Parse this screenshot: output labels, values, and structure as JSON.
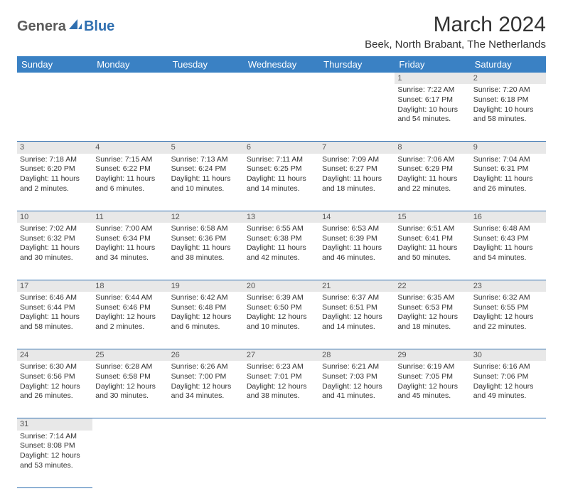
{
  "logo": {
    "part1": "Genera",
    "part2": "Blue"
  },
  "title": "March 2024",
  "location": "Beek, North Brabant, The Netherlands",
  "colors": {
    "header_bg": "#3a81c4",
    "header_text": "#ffffff",
    "daynum_bg": "#e8e8e8",
    "border": "#2f6fb0",
    "text": "#333333",
    "logo_gray": "#5a5a5a",
    "logo_blue": "#2f6fb0"
  },
  "weekdays": [
    "Sunday",
    "Monday",
    "Tuesday",
    "Wednesday",
    "Thursday",
    "Friday",
    "Saturday"
  ],
  "weeks": [
    {
      "nums": [
        "",
        "",
        "",
        "",
        "",
        "1",
        "2"
      ],
      "cells": [
        null,
        null,
        null,
        null,
        null,
        {
          "sr": "Sunrise: 7:22 AM",
          "ss": "Sunset: 6:17 PM",
          "dl1": "Daylight: 10 hours",
          "dl2": "and 54 minutes."
        },
        {
          "sr": "Sunrise: 7:20 AM",
          "ss": "Sunset: 6:18 PM",
          "dl1": "Daylight: 10 hours",
          "dl2": "and 58 minutes."
        }
      ]
    },
    {
      "nums": [
        "3",
        "4",
        "5",
        "6",
        "7",
        "8",
        "9"
      ],
      "cells": [
        {
          "sr": "Sunrise: 7:18 AM",
          "ss": "Sunset: 6:20 PM",
          "dl1": "Daylight: 11 hours",
          "dl2": "and 2 minutes."
        },
        {
          "sr": "Sunrise: 7:15 AM",
          "ss": "Sunset: 6:22 PM",
          "dl1": "Daylight: 11 hours",
          "dl2": "and 6 minutes."
        },
        {
          "sr": "Sunrise: 7:13 AM",
          "ss": "Sunset: 6:24 PM",
          "dl1": "Daylight: 11 hours",
          "dl2": "and 10 minutes."
        },
        {
          "sr": "Sunrise: 7:11 AM",
          "ss": "Sunset: 6:25 PM",
          "dl1": "Daylight: 11 hours",
          "dl2": "and 14 minutes."
        },
        {
          "sr": "Sunrise: 7:09 AM",
          "ss": "Sunset: 6:27 PM",
          "dl1": "Daylight: 11 hours",
          "dl2": "and 18 minutes."
        },
        {
          "sr": "Sunrise: 7:06 AM",
          "ss": "Sunset: 6:29 PM",
          "dl1": "Daylight: 11 hours",
          "dl2": "and 22 minutes."
        },
        {
          "sr": "Sunrise: 7:04 AM",
          "ss": "Sunset: 6:31 PM",
          "dl1": "Daylight: 11 hours",
          "dl2": "and 26 minutes."
        }
      ]
    },
    {
      "nums": [
        "10",
        "11",
        "12",
        "13",
        "14",
        "15",
        "16"
      ],
      "cells": [
        {
          "sr": "Sunrise: 7:02 AM",
          "ss": "Sunset: 6:32 PM",
          "dl1": "Daylight: 11 hours",
          "dl2": "and 30 minutes."
        },
        {
          "sr": "Sunrise: 7:00 AM",
          "ss": "Sunset: 6:34 PM",
          "dl1": "Daylight: 11 hours",
          "dl2": "and 34 minutes."
        },
        {
          "sr": "Sunrise: 6:58 AM",
          "ss": "Sunset: 6:36 PM",
          "dl1": "Daylight: 11 hours",
          "dl2": "and 38 minutes."
        },
        {
          "sr": "Sunrise: 6:55 AM",
          "ss": "Sunset: 6:38 PM",
          "dl1": "Daylight: 11 hours",
          "dl2": "and 42 minutes."
        },
        {
          "sr": "Sunrise: 6:53 AM",
          "ss": "Sunset: 6:39 PM",
          "dl1": "Daylight: 11 hours",
          "dl2": "and 46 minutes."
        },
        {
          "sr": "Sunrise: 6:51 AM",
          "ss": "Sunset: 6:41 PM",
          "dl1": "Daylight: 11 hours",
          "dl2": "and 50 minutes."
        },
        {
          "sr": "Sunrise: 6:48 AM",
          "ss": "Sunset: 6:43 PM",
          "dl1": "Daylight: 11 hours",
          "dl2": "and 54 minutes."
        }
      ]
    },
    {
      "nums": [
        "17",
        "18",
        "19",
        "20",
        "21",
        "22",
        "23"
      ],
      "cells": [
        {
          "sr": "Sunrise: 6:46 AM",
          "ss": "Sunset: 6:44 PM",
          "dl1": "Daylight: 11 hours",
          "dl2": "and 58 minutes."
        },
        {
          "sr": "Sunrise: 6:44 AM",
          "ss": "Sunset: 6:46 PM",
          "dl1": "Daylight: 12 hours",
          "dl2": "and 2 minutes."
        },
        {
          "sr": "Sunrise: 6:42 AM",
          "ss": "Sunset: 6:48 PM",
          "dl1": "Daylight: 12 hours",
          "dl2": "and 6 minutes."
        },
        {
          "sr": "Sunrise: 6:39 AM",
          "ss": "Sunset: 6:50 PM",
          "dl1": "Daylight: 12 hours",
          "dl2": "and 10 minutes."
        },
        {
          "sr": "Sunrise: 6:37 AM",
          "ss": "Sunset: 6:51 PM",
          "dl1": "Daylight: 12 hours",
          "dl2": "and 14 minutes."
        },
        {
          "sr": "Sunrise: 6:35 AM",
          "ss": "Sunset: 6:53 PM",
          "dl1": "Daylight: 12 hours",
          "dl2": "and 18 minutes."
        },
        {
          "sr": "Sunrise: 6:32 AM",
          "ss": "Sunset: 6:55 PM",
          "dl1": "Daylight: 12 hours",
          "dl2": "and 22 minutes."
        }
      ]
    },
    {
      "nums": [
        "24",
        "25",
        "26",
        "27",
        "28",
        "29",
        "30"
      ],
      "cells": [
        {
          "sr": "Sunrise: 6:30 AM",
          "ss": "Sunset: 6:56 PM",
          "dl1": "Daylight: 12 hours",
          "dl2": "and 26 minutes."
        },
        {
          "sr": "Sunrise: 6:28 AM",
          "ss": "Sunset: 6:58 PM",
          "dl1": "Daylight: 12 hours",
          "dl2": "and 30 minutes."
        },
        {
          "sr": "Sunrise: 6:26 AM",
          "ss": "Sunset: 7:00 PM",
          "dl1": "Daylight: 12 hours",
          "dl2": "and 34 minutes."
        },
        {
          "sr": "Sunrise: 6:23 AM",
          "ss": "Sunset: 7:01 PM",
          "dl1": "Daylight: 12 hours",
          "dl2": "and 38 minutes."
        },
        {
          "sr": "Sunrise: 6:21 AM",
          "ss": "Sunset: 7:03 PM",
          "dl1": "Daylight: 12 hours",
          "dl2": "and 41 minutes."
        },
        {
          "sr": "Sunrise: 6:19 AM",
          "ss": "Sunset: 7:05 PM",
          "dl1": "Daylight: 12 hours",
          "dl2": "and 45 minutes."
        },
        {
          "sr": "Sunrise: 6:16 AM",
          "ss": "Sunset: 7:06 PM",
          "dl1": "Daylight: 12 hours",
          "dl2": "and 49 minutes."
        }
      ]
    },
    {
      "nums": [
        "31",
        "",
        "",
        "",
        "",
        "",
        ""
      ],
      "cells": [
        {
          "sr": "Sunrise: 7:14 AM",
          "ss": "Sunset: 8:08 PM",
          "dl1": "Daylight: 12 hours",
          "dl2": "and 53 minutes."
        },
        null,
        null,
        null,
        null,
        null,
        null
      ]
    }
  ]
}
